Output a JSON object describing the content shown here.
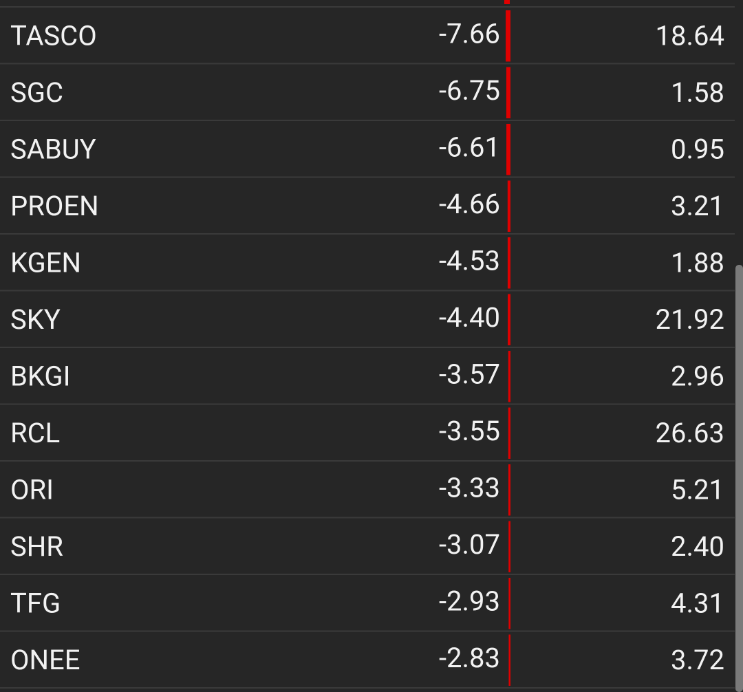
{
  "rows": [
    {
      "symbol": "TASCO",
      "change": -7.66,
      "change_label": "-7.66",
      "price": "18.64"
    },
    {
      "symbol": "SGC",
      "change": -6.75,
      "change_label": "-6.75",
      "price": "1.58"
    },
    {
      "symbol": "SABUY",
      "change": -6.61,
      "change_label": "-6.61",
      "price": "0.95"
    },
    {
      "symbol": "PROEN",
      "change": -4.66,
      "change_label": "-4.66",
      "price": "3.21"
    },
    {
      "symbol": "KGEN",
      "change": -4.53,
      "change_label": "-4.53",
      "price": "1.88"
    },
    {
      "symbol": "SKY",
      "change": -4.4,
      "change_label": "-4.40",
      "price": "21.92"
    },
    {
      "symbol": "BKGI",
      "change": -3.57,
      "change_label": "-3.57",
      "price": "2.96"
    },
    {
      "symbol": "RCL",
      "change": -3.55,
      "change_label": "-3.55",
      "price": "26.63"
    },
    {
      "symbol": "ORI",
      "change": -3.33,
      "change_label": "-3.33",
      "price": "5.21"
    },
    {
      "symbol": "SHR",
      "change": -3.07,
      "change_label": "-3.07",
      "price": "2.40"
    },
    {
      "symbol": "TFG",
      "change": -2.93,
      "change_label": "-2.93",
      "price": "4.31"
    },
    {
      "symbol": "ONEE",
      "change": -2.83,
      "change_label": "-2.83",
      "price": "3.72"
    }
  ]
}
